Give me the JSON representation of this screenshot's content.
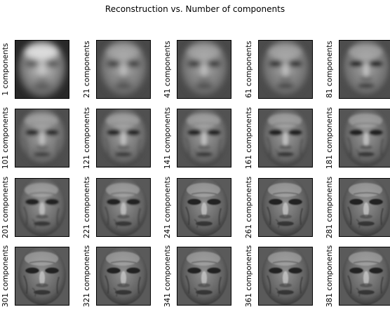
{
  "figure": {
    "title": "Reconstruction vs. Number of components"
  },
  "panels": [
    {
      "label": "1 components",
      "components": 1
    },
    {
      "label": "21 components",
      "components": 21
    },
    {
      "label": "41 components",
      "components": 41
    },
    {
      "label": "61 components",
      "components": 61
    },
    {
      "label": "81 components",
      "components": 81
    },
    {
      "label": "101 components",
      "components": 101
    },
    {
      "label": "121 components",
      "components": 121
    },
    {
      "label": "141 components",
      "components": 141
    },
    {
      "label": "161 components",
      "components": 161
    },
    {
      "label": "181 components",
      "components": 181
    },
    {
      "label": "201 components",
      "components": 201
    },
    {
      "label": "221 components",
      "components": 221
    },
    {
      "label": "241 components",
      "components": 241
    },
    {
      "label": "261 components",
      "components": 261
    },
    {
      "label": "281 components",
      "components": 281
    },
    {
      "label": "301 components",
      "components": 301
    },
    {
      "label": "321 components",
      "components": 321
    },
    {
      "label": "341 components",
      "components": 341
    },
    {
      "label": "361 components",
      "components": 361
    },
    {
      "label": "381 components",
      "components": 381
    }
  ]
}
